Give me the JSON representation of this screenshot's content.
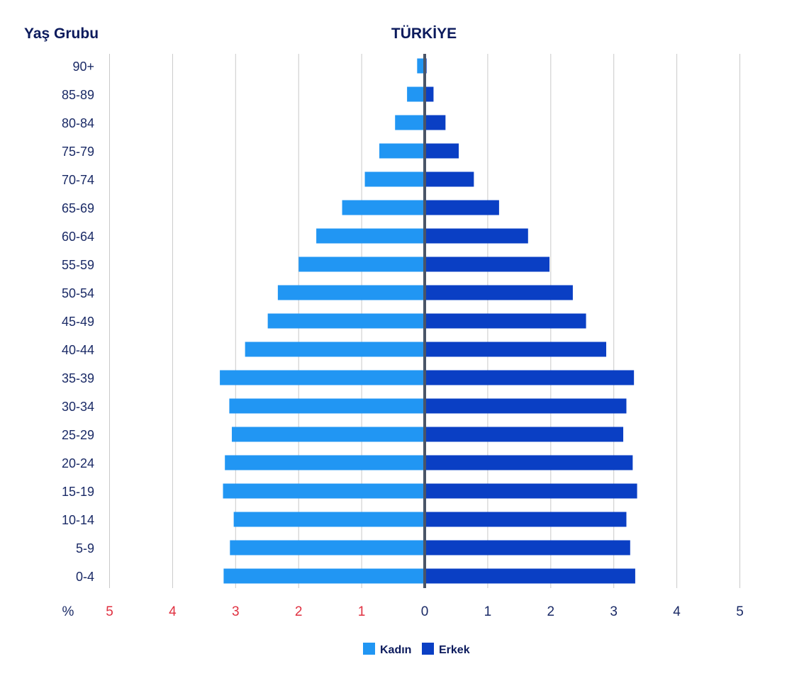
{
  "chart_data": {
    "type": "bar",
    "title": "TÜRKİYE",
    "ylabel": "Yaş Grubu",
    "xunit": "%",
    "categories": [
      "90+",
      "85-89",
      "80-84",
      "75-79",
      "70-74",
      "65-69",
      "60-64",
      "55-59",
      "50-54",
      "45-49",
      "40-44",
      "35-39",
      "30-34",
      "25-29",
      "20-24",
      "15-19",
      "10-14",
      "5-9",
      "0-4"
    ],
    "series": [
      {
        "name": "Kadın",
        "side": "left",
        "color": "#2196f3",
        "values": [
          0.12,
          0.28,
          0.47,
          0.72,
          0.95,
          1.31,
          1.72,
          2.0,
          2.33,
          2.49,
          2.85,
          3.25,
          3.1,
          3.06,
          3.17,
          3.2,
          3.03,
          3.09,
          3.19
        ]
      },
      {
        "name": "Erkek",
        "side": "right",
        "color": "#0a3fc4",
        "values": [
          0.03,
          0.14,
          0.33,
          0.54,
          0.78,
          1.18,
          1.64,
          1.98,
          2.35,
          2.56,
          2.88,
          3.32,
          3.2,
          3.15,
          3.3,
          3.37,
          3.2,
          3.26,
          3.34
        ]
      }
    ],
    "xlim": [
      -5,
      5
    ],
    "ticks_left": [
      "5",
      "4",
      "3",
      "2",
      "1"
    ],
    "ticks_right": [
      "0",
      "1",
      "2",
      "3",
      "4",
      "5"
    ],
    "grid": true,
    "legend": "bottom-center"
  }
}
